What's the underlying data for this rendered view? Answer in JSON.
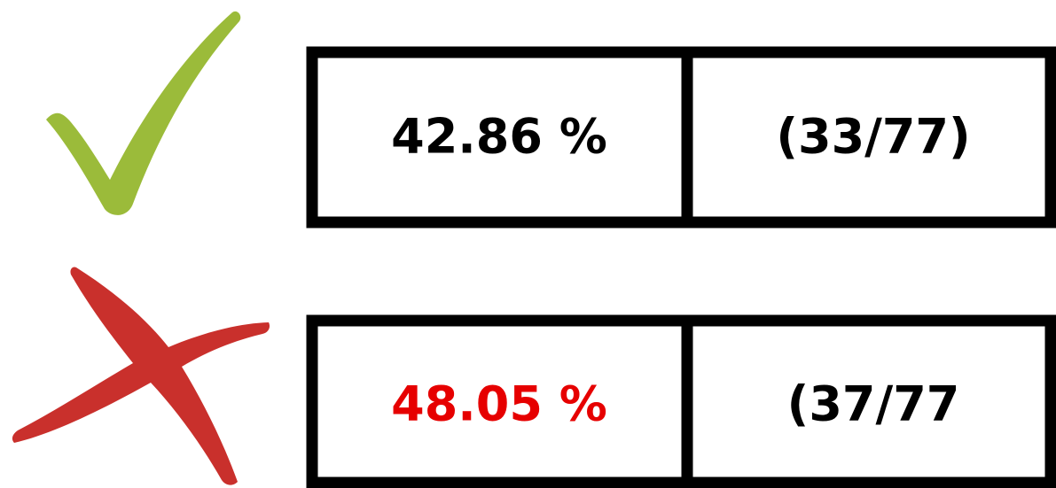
{
  "rows": [
    {
      "status": "correct",
      "percent": "42.86 %",
      "count": "(33/77)"
    },
    {
      "status": "wrong",
      "percent": "48.05 %",
      "count": "(37/77"
    }
  ]
}
